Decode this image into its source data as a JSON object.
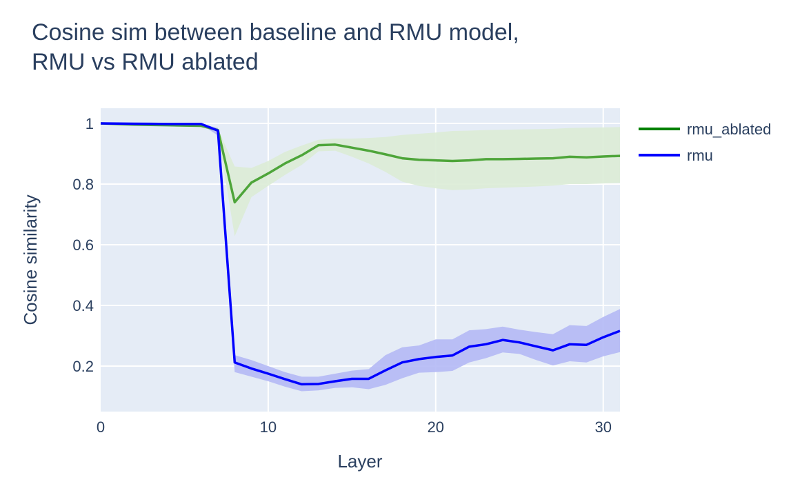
{
  "chart_data": {
    "type": "line",
    "title_lines": [
      "Cosine sim between baseline and RMU model,",
      "RMU vs RMU ablated"
    ],
    "xlabel": "Layer",
    "ylabel": "Cosine similarity",
    "xlim": [
      0,
      31
    ],
    "ylim": [
      0.05,
      1.05
    ],
    "x_ticks": [
      0,
      10,
      20,
      30
    ],
    "y_ticks": [
      0.2,
      0.4,
      0.6,
      0.8,
      1
    ],
    "grid": true,
    "legend_position": "top-right, outside plot",
    "x": [
      0,
      1,
      2,
      3,
      4,
      5,
      6,
      7,
      8,
      9,
      10,
      11,
      12,
      13,
      14,
      15,
      16,
      17,
      18,
      19,
      20,
      21,
      22,
      23,
      24,
      25,
      26,
      27,
      28,
      29,
      30,
      31
    ],
    "series": [
      {
        "name": "rmu_ablated",
        "color": "#008000",
        "line_color": "#4ea53a",
        "band_color": "#dcecd6",
        "values": [
          1.0,
          0.998,
          0.996,
          0.995,
          0.994,
          0.993,
          0.992,
          0.978,
          0.74,
          0.805,
          0.835,
          0.868,
          0.895,
          0.928,
          0.93,
          0.92,
          0.91,
          0.898,
          0.885,
          0.88,
          0.878,
          0.876,
          0.878,
          0.882,
          0.882,
          0.883,
          0.884,
          0.885,
          0.89,
          0.888,
          0.891,
          0.893
        ],
        "upper": [
          1.0,
          0.998,
          0.996,
          0.995,
          0.994,
          0.993,
          0.993,
          0.982,
          0.858,
          0.853,
          0.876,
          0.906,
          0.927,
          0.946,
          0.95,
          0.95,
          0.952,
          0.955,
          0.962,
          0.966,
          0.97,
          0.975,
          0.976,
          0.978,
          0.979,
          0.98,
          0.981,
          0.982,
          0.985,
          0.986,
          0.987,
          0.988
        ],
        "lower": [
          1.0,
          0.998,
          0.996,
          0.995,
          0.994,
          0.993,
          0.99,
          0.966,
          0.628,
          0.757,
          0.794,
          0.83,
          0.863,
          0.908,
          0.91,
          0.89,
          0.868,
          0.84,
          0.808,
          0.794,
          0.786,
          0.78,
          0.782,
          0.786,
          0.788,
          0.79,
          0.792,
          0.795,
          0.8,
          0.8,
          0.802,
          0.804
        ]
      },
      {
        "name": "rmu",
        "color": "#0000ff",
        "line_color": "#0000ff",
        "band_color": "#b4b9f5",
        "values": [
          1.0,
          0.9995,
          0.999,
          0.9985,
          0.998,
          0.998,
          0.998,
          0.976,
          0.212,
          0.192,
          0.175,
          0.157,
          0.14,
          0.141,
          0.15,
          0.158,
          0.158,
          0.186,
          0.212,
          0.223,
          0.23,
          0.235,
          0.264,
          0.272,
          0.286,
          0.278,
          0.265,
          0.252,
          0.272,
          0.27,
          0.295,
          0.316
        ],
        "upper": [
          1.0,
          0.9995,
          0.999,
          0.9985,
          0.998,
          0.998,
          0.999,
          0.985,
          0.236,
          0.22,
          0.2,
          0.18,
          0.165,
          0.165,
          0.175,
          0.185,
          0.19,
          0.236,
          0.262,
          0.268,
          0.288,
          0.288,
          0.318,
          0.322,
          0.33,
          0.32,
          0.312,
          0.305,
          0.335,
          0.332,
          0.362,
          0.388
        ],
        "lower": [
          1.0,
          0.9995,
          0.999,
          0.9985,
          0.998,
          0.998,
          0.997,
          0.96,
          0.18,
          0.165,
          0.15,
          0.132,
          0.117,
          0.12,
          0.128,
          0.13,
          0.124,
          0.138,
          0.16,
          0.178,
          0.18,
          0.184,
          0.212,
          0.226,
          0.245,
          0.24,
          0.22,
          0.202,
          0.216,
          0.212,
          0.232,
          0.246
        ]
      }
    ]
  }
}
